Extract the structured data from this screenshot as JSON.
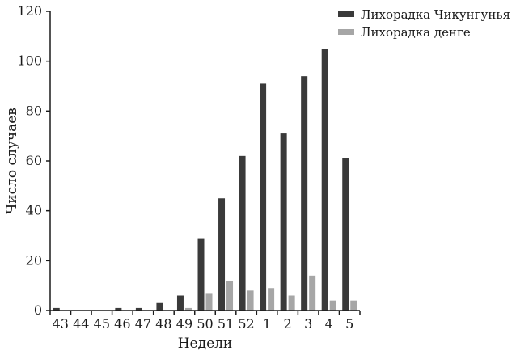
{
  "chart_data": {
    "type": "bar",
    "title": "",
    "xlabel": "Недели",
    "ylabel": "Число случаев",
    "ylim": [
      0,
      120
    ],
    "yticks": [
      0,
      20,
      40,
      60,
      80,
      100,
      120
    ],
    "grid": false,
    "legend_position": "top-right",
    "categories": [
      "43",
      "44",
      "45",
      "46",
      "47",
      "48",
      "49",
      "50",
      "51",
      "52",
      "1",
      "2",
      "3",
      "4",
      "5"
    ],
    "series": [
      {
        "name": "Лихорадка Чикунгунья",
        "color": "#3a3a3a",
        "values": [
          1,
          0,
          0,
          1,
          1,
          3,
          6,
          29,
          45,
          62,
          91,
          71,
          94,
          105,
          61
        ]
      },
      {
        "name": "Лихорадка денге",
        "color": "#a6a6a6",
        "values": [
          0,
          0,
          0,
          0,
          0,
          0,
          1,
          7,
          12,
          8,
          9,
          6,
          14,
          4,
          4
        ]
      }
    ]
  }
}
